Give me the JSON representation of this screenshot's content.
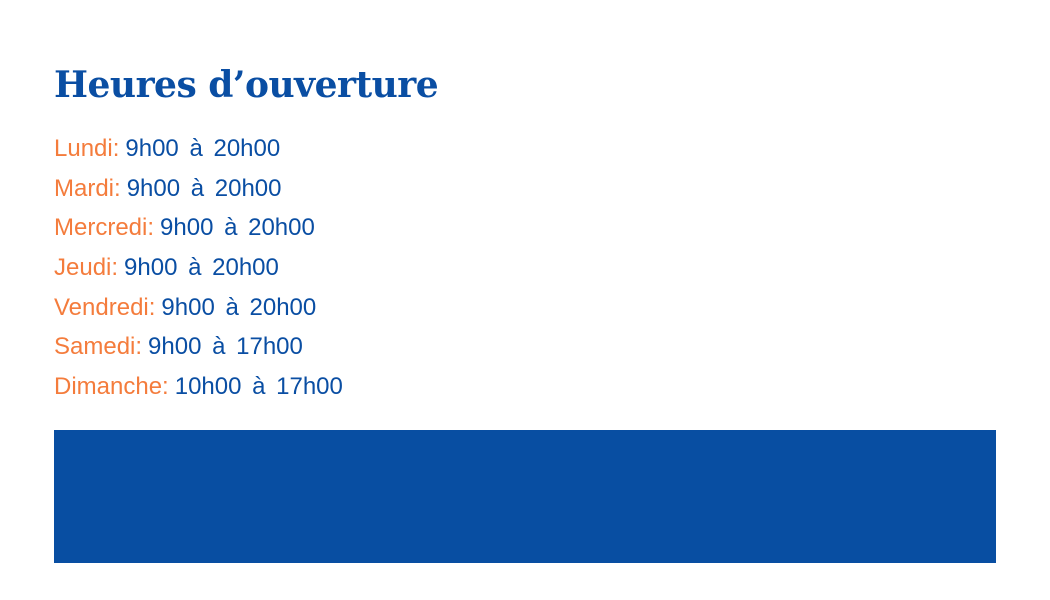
{
  "title": "Heures d’ouverture",
  "hours": [
    {
      "day": "Lundi:",
      "time": "9h00 à 20h00"
    },
    {
      "day": "Mardi:",
      "time": "9h00 à 20h00"
    },
    {
      "day": "Mercredi:",
      "time": "9h00 à 20h00"
    },
    {
      "day": "Jeudi:",
      "time": "9h00 à 20h00"
    },
    {
      "day": "Vendredi:",
      "time": "9h00 à 20h00"
    },
    {
      "day": "Samedi:",
      "time": "9h00 à 17h00"
    },
    {
      "day": "Dimanche:",
      "time": "10h00 à 17h00"
    }
  ],
  "colors": {
    "primary": "#0a4ea3",
    "accent": "#f47c3c",
    "block": "#084ea2"
  }
}
